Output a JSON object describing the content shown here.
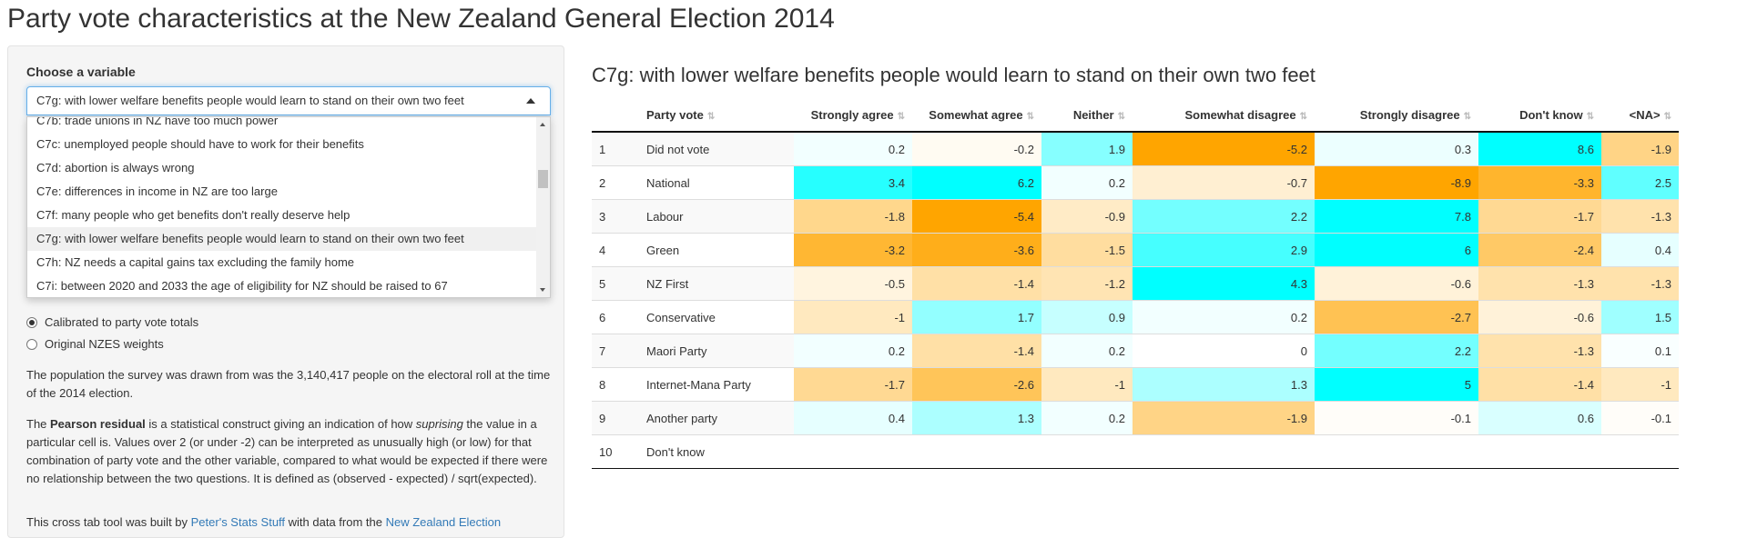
{
  "page_title": "Party vote characteristics at the New Zealand General Election 2014",
  "sidebar": {
    "choose_label": "Choose a variable",
    "selected_value": "C7g: with lower welfare benefits people would learn to stand on their own two feet",
    "options": [
      "C7b: trade unions in NZ have too much power",
      "C7c: unemployed people should have to work for their benefits",
      "C7d: abortion is always wrong",
      "C7e: differences in income in NZ are too large",
      "C7f: many people who get benefits don't really deserve help",
      "C7g: with lower welfare benefits people would learn to stand on their own two feet",
      "C7h: NZ needs a capital gains tax excluding the family home",
      "C7i: between 2020 and 2033 the age of eligibility for NZ should be raised to 67"
    ],
    "weights": {
      "calibrated": "Calibrated to party vote totals",
      "original": "Original NZES weights"
    },
    "para1": "The population the survey was drawn from was the 3,140,417 people on the electoral roll at the time of the 2014 election.",
    "para2": {
      "lead": "The ",
      "bold": "Pearson residual",
      "mid": " is a statistical construct giving an indication of how ",
      "em": "suprising",
      "rest": " the value in a particular cell is. Values over 2 (or under -2) can be interpreted as unusually high (or low) for that combination of party vote and the other variable, compared to what would be expected if there were no relationship between the two questions. It is defined as (observed - expected) / sqrt(expected)."
    },
    "para3": {
      "lead": "This cross tab tool was built by ",
      "link1": "Peter's Stats Stuff",
      "mid": " with data from the ",
      "link2": "New Zealand Election"
    }
  },
  "main": {
    "subtitle": "C7g: with lower welfare benefits people would learn to stand on their own two feet",
    "columns": [
      "Party vote",
      "Strongly agree",
      "Somewhat agree",
      "Neither",
      "Somewhat disagree",
      "Strongly disagree",
      "Don't know",
      "<NA>"
    ],
    "rows": [
      {
        "n": "1",
        "party": "Did not vote",
        "values": [
          "0.2",
          "-0.2",
          "1.9",
          "-5.2",
          "0.3",
          "8.6",
          "-1.9"
        ]
      },
      {
        "n": "2",
        "party": "National",
        "values": [
          "3.4",
          "6.2",
          "0.2",
          "-0.7",
          "-8.9",
          "-3.3",
          "2.5"
        ]
      },
      {
        "n": "3",
        "party": "Labour",
        "values": [
          "-1.8",
          "-5.4",
          "-0.9",
          "2.2",
          "7.8",
          "-1.7",
          "-1.3"
        ]
      },
      {
        "n": "4",
        "party": "Green",
        "values": [
          "-3.2",
          "-3.6",
          "-1.5",
          "2.9",
          "6",
          "-2.4",
          "0.4"
        ]
      },
      {
        "n": "5",
        "party": "NZ First",
        "values": [
          "-0.5",
          "-1.4",
          "-1.2",
          "4.3",
          "-0.6",
          "-1.3",
          "-1.3"
        ]
      },
      {
        "n": "6",
        "party": "Conservative",
        "values": [
          "-1",
          "1.7",
          "0.9",
          "0.2",
          "-2.7",
          "-0.6",
          "1.5"
        ]
      },
      {
        "n": "7",
        "party": "Maori Party",
        "values": [
          "0.2",
          "-1.4",
          "0.2",
          "0",
          "2.2",
          "-1.3",
          "0.1"
        ]
      },
      {
        "n": "8",
        "party": "Internet-Mana Party",
        "values": [
          "-1.7",
          "-2.6",
          "-1",
          "1.3",
          "5",
          "-1.4",
          "-1"
        ]
      },
      {
        "n": "9",
        "party": "Another party",
        "values": [
          "0.4",
          "1.3",
          "0.2",
          "-1.9",
          "-0.1",
          "0.6",
          "-0.1"
        ]
      },
      {
        "n": "10",
        "party": "Don't know",
        "values": []
      }
    ]
  }
}
